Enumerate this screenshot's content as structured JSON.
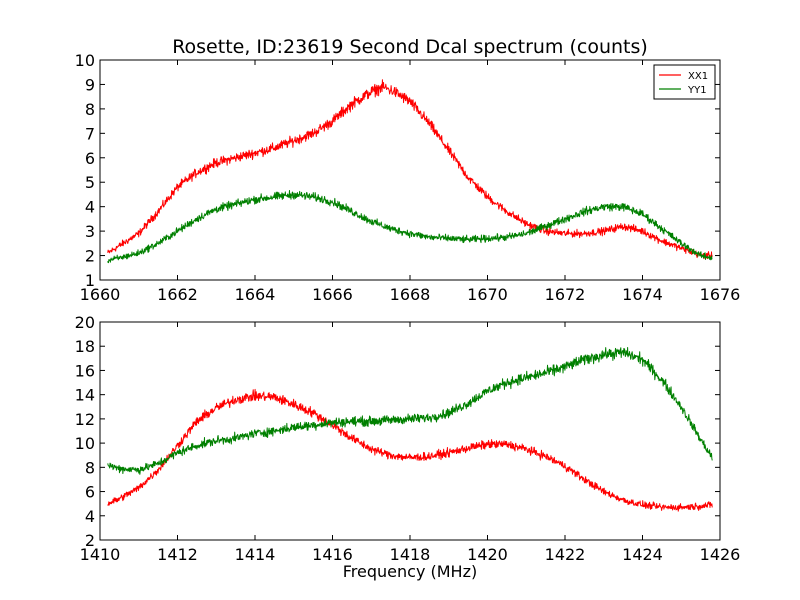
{
  "chart_data": [
    {
      "type": "line",
      "title": "Rosette, ID:23619 Second Dcal spectrum (counts)",
      "xlabel": "",
      "ylabel": "",
      "xlim": [
        1660,
        1676
      ],
      "ylim": [
        1,
        10
      ],
      "xticks": [
        "1660",
        "1662",
        "1664",
        "1666",
        "1668",
        "1670",
        "1672",
        "1674",
        "1676"
      ],
      "yticks": [
        "1",
        "2",
        "3",
        "4",
        "5",
        "6",
        "7",
        "8",
        "9",
        "10"
      ],
      "grid": false,
      "legend_position": "top-right",
      "series": [
        {
          "name": "XX1",
          "color": "#ff0000",
          "x": [
            1660.2,
            1661.0,
            1661.5,
            1662.0,
            1662.5,
            1663.0,
            1663.5,
            1664.0,
            1664.5,
            1665.0,
            1665.5,
            1666.0,
            1666.5,
            1667.0,
            1667.3,
            1667.6,
            1668.0,
            1668.5,
            1669.0,
            1669.5,
            1670.0,
            1670.5,
            1671.0,
            1671.5,
            1672.0,
            1672.5,
            1673.0,
            1673.5,
            1674.0,
            1674.5,
            1675.0,
            1675.5,
            1675.8
          ],
          "y": [
            2.1,
            2.9,
            3.8,
            4.8,
            5.4,
            5.8,
            6.0,
            6.2,
            6.4,
            6.7,
            7.0,
            7.5,
            8.2,
            8.7,
            8.9,
            8.7,
            8.3,
            7.4,
            6.3,
            5.2,
            4.4,
            3.8,
            3.3,
            3.0,
            2.9,
            2.9,
            3.0,
            3.2,
            3.0,
            2.6,
            2.3,
            2.0,
            2.0
          ]
        },
        {
          "name": "YY1",
          "color": "#008000",
          "x": [
            1660.2,
            1660.5,
            1661.0,
            1661.5,
            1662.0,
            1662.5,
            1663.0,
            1663.5,
            1664.0,
            1664.5,
            1665.0,
            1665.5,
            1666.0,
            1666.5,
            1667.0,
            1667.5,
            1668.0,
            1668.5,
            1669.0,
            1669.5,
            1670.0,
            1670.5,
            1671.0,
            1671.5,
            1672.0,
            1672.5,
            1673.0,
            1673.5,
            1674.0,
            1674.5,
            1675.0,
            1675.5,
            1675.8
          ],
          "y": [
            1.8,
            1.9,
            2.1,
            2.5,
            3.0,
            3.5,
            3.9,
            4.1,
            4.3,
            4.4,
            4.5,
            4.4,
            4.2,
            3.8,
            3.4,
            3.1,
            2.9,
            2.75,
            2.7,
            2.65,
            2.7,
            2.75,
            2.9,
            3.2,
            3.5,
            3.8,
            4.0,
            4.0,
            3.7,
            3.1,
            2.5,
            2.0,
            1.9
          ]
        }
      ]
    },
    {
      "type": "line",
      "title": "",
      "xlabel": "Frequency (MHz)",
      "ylabel": "",
      "xlim": [
        1410,
        1426
      ],
      "ylim": [
        2,
        20
      ],
      "xticks": [
        "1410",
        "1412",
        "1414",
        "1416",
        "1418",
        "1420",
        "1422",
        "1424",
        "1426"
      ],
      "yticks": [
        "2",
        "4",
        "6",
        "8",
        "10",
        "12",
        "14",
        "16",
        "18",
        "20"
      ],
      "grid": false,
      "series": [
        {
          "name": "XX1",
          "color": "#ff0000",
          "x": [
            1410.2,
            1410.5,
            1411.0,
            1411.5,
            1412.0,
            1412.5,
            1413.0,
            1413.5,
            1414.0,
            1414.5,
            1415.0,
            1415.5,
            1416.0,
            1416.5,
            1417.0,
            1417.5,
            1418.0,
            1418.5,
            1419.0,
            1419.5,
            1420.0,
            1420.5,
            1421.0,
            1421.5,
            1422.0,
            1422.5,
            1423.0,
            1423.5,
            1424.0,
            1424.5,
            1425.0,
            1425.5,
            1425.8
          ],
          "y": [
            5.0,
            5.4,
            6.3,
            7.8,
            9.8,
            11.8,
            12.9,
            13.6,
            13.9,
            13.8,
            13.2,
            12.5,
            11.5,
            10.4,
            9.5,
            9.0,
            8.8,
            8.9,
            9.2,
            9.6,
            9.9,
            9.9,
            9.5,
            8.9,
            8.1,
            7.0,
            6.0,
            5.3,
            4.9,
            4.7,
            4.7,
            4.8,
            4.9
          ]
        },
        {
          "name": "YY1",
          "color": "#008000",
          "x": [
            1410.2,
            1410.5,
            1411.0,
            1411.5,
            1412.0,
            1412.5,
            1413.0,
            1413.5,
            1414.0,
            1414.5,
            1415.0,
            1415.5,
            1416.0,
            1416.5,
            1417.0,
            1417.5,
            1418.0,
            1418.5,
            1419.0,
            1419.5,
            1420.0,
            1420.5,
            1421.0,
            1421.5,
            1422.0,
            1422.5,
            1423.0,
            1423.5,
            1424.0,
            1424.5,
            1425.0,
            1425.5,
            1425.8
          ],
          "y": [
            8.2,
            7.9,
            7.8,
            8.3,
            9.2,
            9.8,
            10.2,
            10.4,
            10.8,
            11.0,
            11.3,
            11.5,
            11.7,
            11.8,
            11.8,
            11.9,
            12.0,
            12.1,
            12.5,
            13.3,
            14.3,
            15.0,
            15.4,
            15.8,
            16.3,
            16.9,
            17.3,
            17.5,
            16.9,
            15.2,
            13.0,
            10.3,
            8.8
          ]
        }
      ]
    }
  ]
}
